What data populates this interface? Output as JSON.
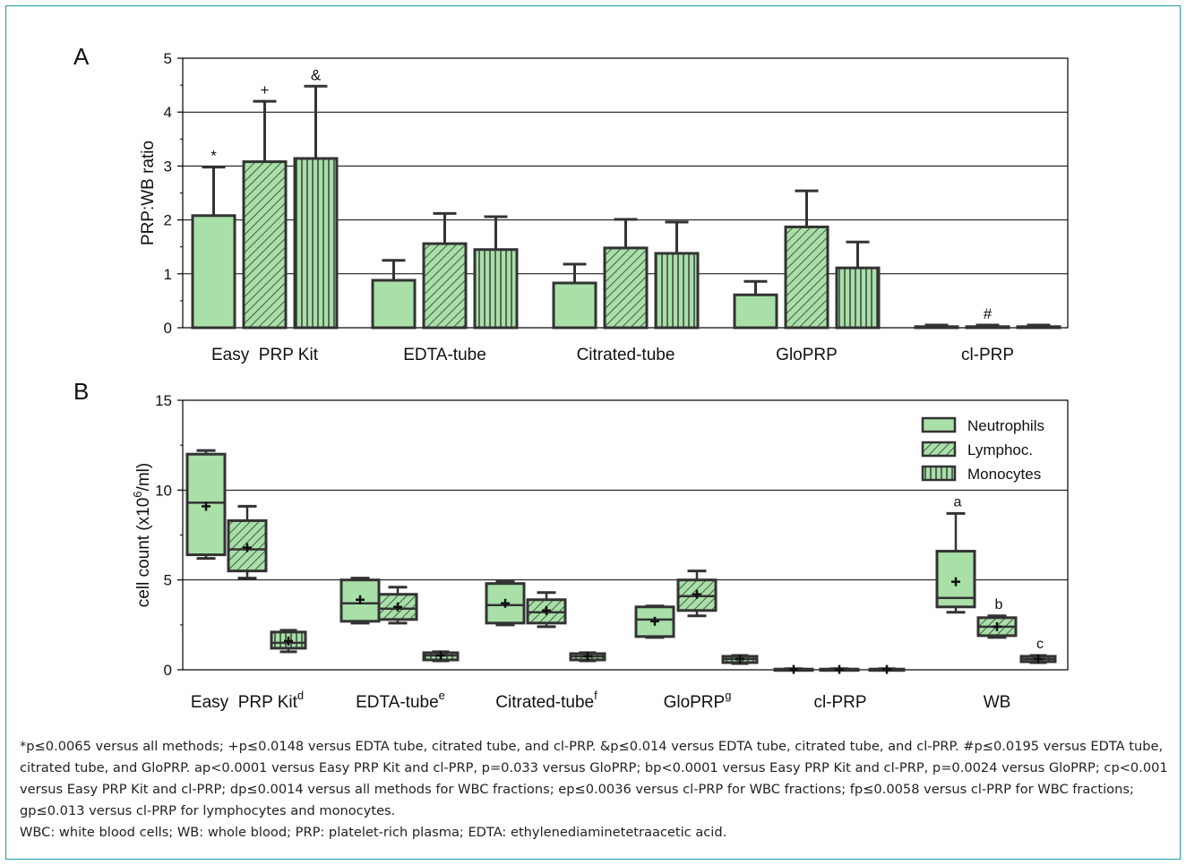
{
  "colors": {
    "frame": "#1a9aa8",
    "fill": "#a8e0a8",
    "stroke": "#333333",
    "grid": "#000000"
  },
  "chart_data": [
    {
      "panel_label": "A",
      "type": "bar",
      "ylabel": "PRP:WB ratio",
      "ylim": [
        0,
        5
      ],
      "yticks": [
        "0",
        "1",
        "2",
        "3",
        "4",
        "5"
      ],
      "grid": true,
      "categories": [
        "Easy  PRP Kit",
        "EDTA-tube",
        "Citrated-tube",
        "GloPRP",
        "cl-PRP"
      ],
      "series": [
        {
          "pattern": "solid",
          "values": [
            2.08,
            0.88,
            0.83,
            0.61,
            0.02
          ],
          "errors": [
            0.9,
            0.37,
            0.35,
            0.25,
            0.03
          ]
        },
        {
          "pattern": "diagonal",
          "values": [
            3.08,
            1.56,
            1.48,
            1.87,
            0.02
          ],
          "errors": [
            1.12,
            0.56,
            0.53,
            0.67,
            0.03
          ]
        },
        {
          "pattern": "vertical",
          "values": [
            3.14,
            1.45,
            1.38,
            1.11,
            0.02
          ],
          "errors": [
            1.34,
            0.61,
            0.58,
            0.48,
            0.03
          ]
        }
      ],
      "annotations": [
        {
          "category": 0,
          "series": 0,
          "text": "*"
        },
        {
          "category": 0,
          "series": 1,
          "text": "+"
        },
        {
          "category": 0,
          "series": 2,
          "text": "&"
        },
        {
          "category": 4,
          "series": 1,
          "text": "#"
        }
      ]
    },
    {
      "panel_label": "B",
      "type": "box",
      "ylabel": "cell count (x10",
      "ylabel_sup": "6",
      "ylabel_end": "/ml)",
      "ylim": [
        0,
        15
      ],
      "yticks": [
        "0",
        "5",
        "10",
        "15"
      ],
      "grid": true,
      "categories": [
        {
          "label": "Easy  PRP Kit",
          "sup": "d"
        },
        {
          "label": "EDTA-tube",
          "sup": "e"
        },
        {
          "label": "Citrated-tube",
          "sup": "f"
        },
        {
          "label": "GloPRP",
          "sup": "g"
        },
        {
          "label": "cl-PRP",
          "sup": ""
        },
        {
          "label": "WB",
          "sup": ""
        }
      ],
      "legend": {
        "position": "top-right",
        "entries": [
          "Neutrophils",
          "Lymphoc.",
          "Monocytes"
        ]
      },
      "series": [
        {
          "name": "Neutrophils",
          "pattern": "solid",
          "boxes": [
            {
              "min": 6.2,
              "q1": 6.4,
              "median": 9.3,
              "q3": 12.0,
              "max": 12.2,
              "mean": 9.1
            },
            {
              "min": 2.6,
              "q1": 2.7,
              "median": 3.7,
              "q3": 5.0,
              "max": 5.1,
              "mean": 3.9
            },
            {
              "min": 2.5,
              "q1": 2.6,
              "median": 3.6,
              "q3": 4.8,
              "max": 4.9,
              "mean": 3.7
            },
            {
              "min": 1.8,
              "q1": 1.85,
              "median": 2.8,
              "q3": 3.5,
              "max": 3.55,
              "mean": 2.7
            },
            {
              "min": 0.0,
              "q1": 0.0,
              "median": 0.02,
              "q3": 0.04,
              "max": 0.06,
              "mean": 0.02
            },
            {
              "min": 3.2,
              "q1": 3.5,
              "median": 4.0,
              "q3": 6.6,
              "max": 8.7,
              "mean": 4.9
            }
          ]
        },
        {
          "name": "Lymphoc.",
          "pattern": "diagonal",
          "boxes": [
            {
              "min": 5.1,
              "q1": 5.5,
              "median": 6.7,
              "q3": 8.3,
              "max": 9.1,
              "mean": 6.8
            },
            {
              "min": 2.6,
              "q1": 2.8,
              "median": 3.4,
              "q3": 4.2,
              "max": 4.6,
              "mean": 3.5
            },
            {
              "min": 2.4,
              "q1": 2.6,
              "median": 3.2,
              "q3": 3.9,
              "max": 4.3,
              "mean": 3.3
            },
            {
              "min": 3.0,
              "q1": 3.3,
              "median": 4.1,
              "q3": 5.0,
              "max": 5.5,
              "mean": 4.2
            },
            {
              "min": 0.0,
              "q1": 0.0,
              "median": 0.02,
              "q3": 0.04,
              "max": 0.06,
              "mean": 0.02
            },
            {
              "min": 1.8,
              "q1": 1.9,
              "median": 2.4,
              "q3": 2.9,
              "max": 3.0,
              "mean": 2.4
            }
          ]
        },
        {
          "name": "Monocytes",
          "pattern": "vertical",
          "boxes": [
            {
              "min": 1.0,
              "q1": 1.2,
              "median": 1.5,
              "q3": 2.1,
              "max": 2.2,
              "mean": 1.6
            },
            {
              "min": 0.5,
              "q1": 0.55,
              "median": 0.8,
              "q3": 0.95,
              "max": 1.0,
              "mean": 0.8
            },
            {
              "min": 0.5,
              "q1": 0.55,
              "median": 0.75,
              "q3": 0.9,
              "max": 0.95,
              "mean": 0.75
            },
            {
              "min": 0.35,
              "q1": 0.4,
              "median": 0.6,
              "q3": 0.75,
              "max": 0.8,
              "mean": 0.6
            },
            {
              "min": 0.0,
              "q1": 0.0,
              "median": 0.02,
              "q3": 0.04,
              "max": 0.06,
              "mean": 0.02
            },
            {
              "min": 0.4,
              "q1": 0.45,
              "median": 0.6,
              "q3": 0.75,
              "max": 0.8,
              "mean": 0.6
            }
          ]
        }
      ],
      "annotations": [
        {
          "category": 5,
          "series": 0,
          "text": "a"
        },
        {
          "category": 5,
          "series": 1,
          "text": "b"
        },
        {
          "category": 5,
          "series": 2,
          "text": "c"
        }
      ]
    }
  ],
  "footnote": {
    "line1": "*p≤0.0065 versus all methods; +p≤0.0148 versus EDTA tube, citrated tube, and cl-PRP. &p≤0.014 versus EDTA tube, citrated tube, and cl-PRP. #p≤0.0195 versus EDTA tube, citrated tube, and GloPRP. ap<0.0001 versus Easy PRP Kit and cl-PRP, p=0.033 versus GloPRP; bp<0.0001 versus Easy PRP Kit and cl-PRP, p=0.0024 versus GloPRP; cp<0.001 versus Easy PRP Kit and cl-PRP; dp≤0.0014 versus all methods for WBC fractions; ep≤0.0036 versus cl-PRP for WBC fractions; fp≤0.0058 versus cl-PRP for WBC fractions; gp≤0.013 versus cl-PRP for lymphocytes and monocytes.",
    "line2": "WBC: white blood cells; WB: whole blood; PRP: platelet-rich plasma; EDTA: ethylenediaminetetraacetic acid."
  }
}
